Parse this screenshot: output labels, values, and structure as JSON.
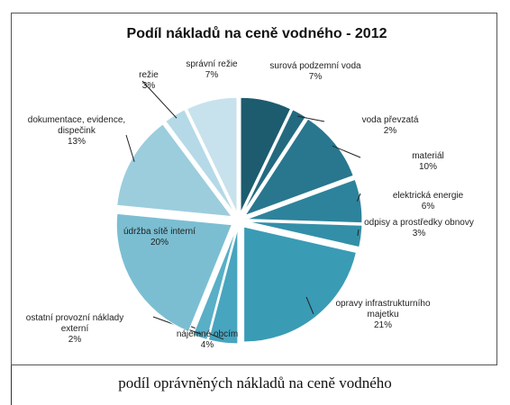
{
  "chart_data": {
    "type": "pie",
    "title": "Podíl nákladů na ceně vodného - 2012",
    "categories": [
      "surová podzemní voda",
      "voda převzatá",
      "materiál",
      "elektrická energie",
      "odpisy a prostředky obnovy",
      "opravy infrastrukturního majetku",
      "nájemné obcím",
      "ostatní provozní náklady externí",
      "údržba sítě interní",
      "dokumentace, evidence, dispečink",
      "režie",
      "správní režie"
    ],
    "values": [
      7,
      2,
      10,
      6,
      3,
      21,
      4,
      2,
      20,
      13,
      3,
      7
    ],
    "value_labels": [
      "7%",
      "2%",
      "10%",
      "6%",
      "3%",
      "21%",
      "4%",
      "2%",
      "20%",
      "13%",
      "3%",
      "7%"
    ],
    "colors": [
      "#1d5b6e",
      "#236a80",
      "#28778e",
      "#2d839b",
      "#338fa8",
      "#3a9bb5",
      "#47a5bf",
      "#58afc6",
      "#7bbed2",
      "#9bcddd",
      "#b5d9e7",
      "#c7e2ed"
    ]
  },
  "caption": "podíl oprávněných nákladů na ceně vodného"
}
